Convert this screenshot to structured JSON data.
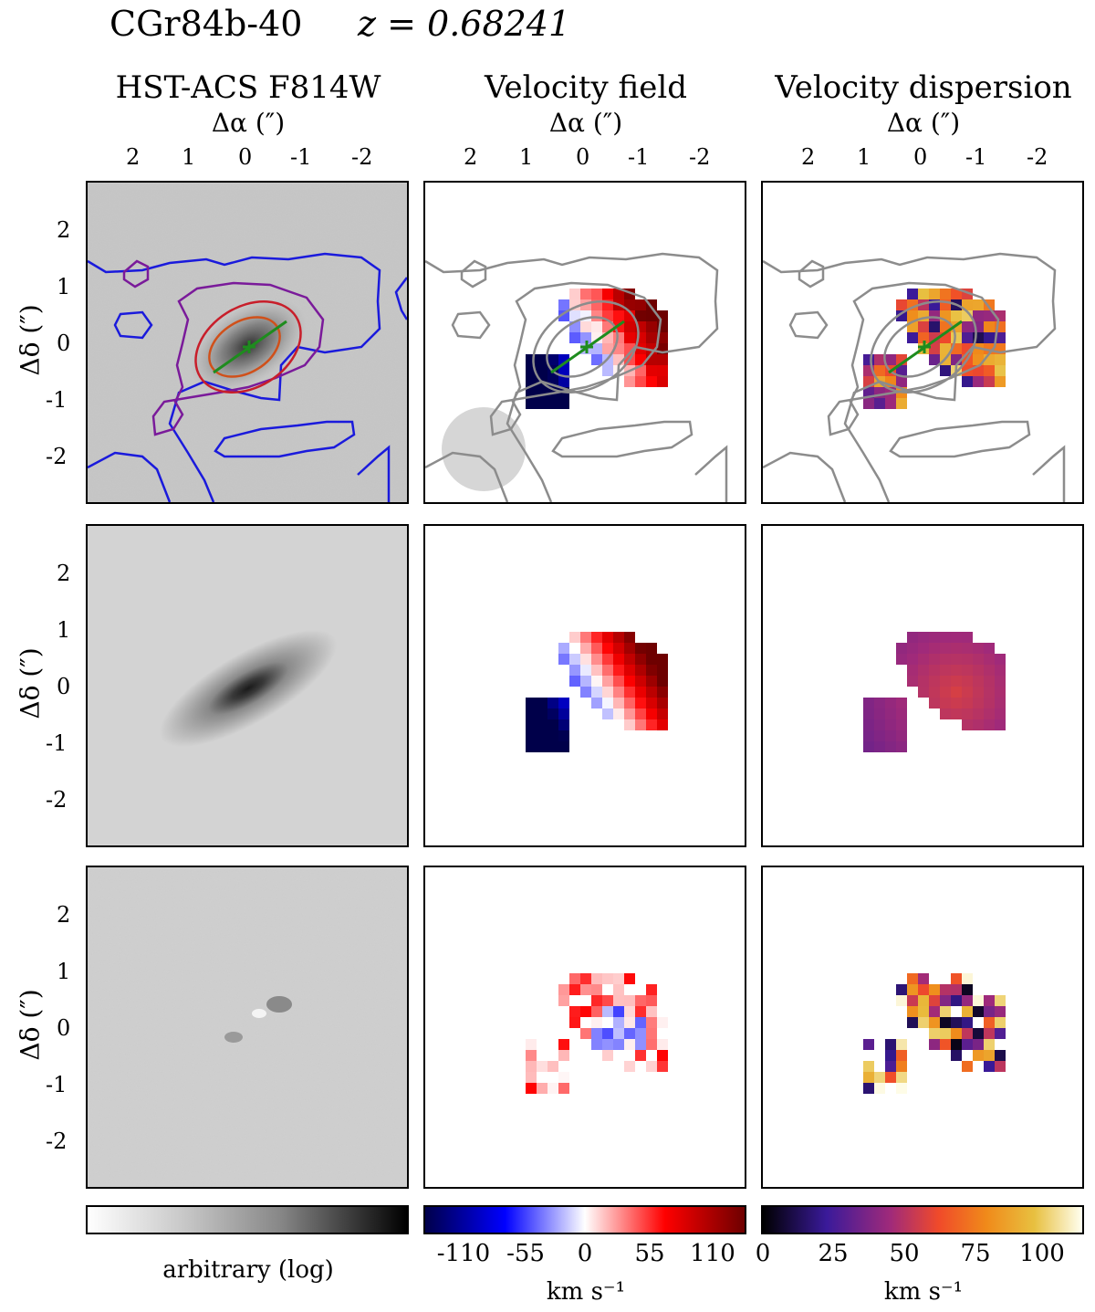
{
  "header": {
    "object_name": "CGr84b-40",
    "redshift_label": "z = 0.68241"
  },
  "columns": [
    {
      "title": "HST-ACS F814W",
      "xlabel": "Δα (″)"
    },
    {
      "title": "Velocity field",
      "xlabel": "Δα (″)"
    },
    {
      "title": "Velocity dispersion",
      "xlabel": "Δα (″)"
    }
  ],
  "x_ticks": [
    "2",
    "1",
    "0",
    "-1",
    "-2"
  ],
  "y_ticks": [
    "2",
    "1",
    "0",
    "-1",
    "-2"
  ],
  "ylabel": "Δδ (″)",
  "colorbars": [
    {
      "label": "arbitrary (log)",
      "ticks": []
    },
    {
      "label": "km s⁻¹",
      "ticks": [
        "-110",
        "-55",
        "0",
        "55",
        "110"
      ]
    },
    {
      "label": "km s⁻¹",
      "ticks": [
        "0",
        "25",
        "50",
        "75",
        "100"
      ]
    }
  ],
  "colors": {
    "contour_blue": "#1a1adc",
    "contour_purple": "#7a1a9a",
    "contour_red": "#c81e2a",
    "contour_orange": "#d0501a",
    "contour_gray": "#8c8c8c",
    "major_axis_green": "#1e8c1e",
    "psf_disk": "#d6d6d6"
  }
}
